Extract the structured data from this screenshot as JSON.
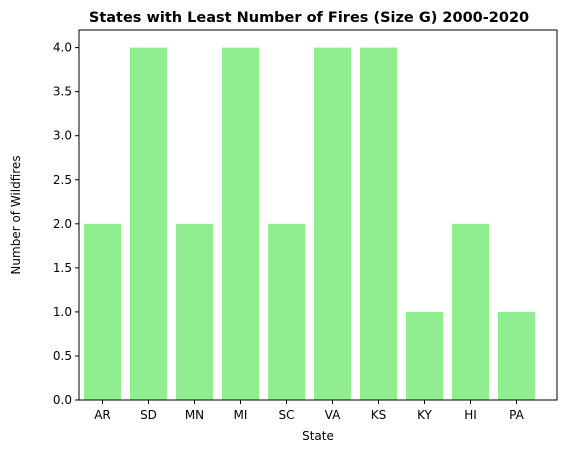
{
  "chart_data": {
    "type": "bar",
    "title": "States with Least Number of Fires (Size G) 2000-2020",
    "xlabel": "State",
    "ylabel": "Number of Wildfires",
    "categories": [
      "AR",
      "SD",
      "MN",
      "MI",
      "SC",
      "VA",
      "KS",
      "KY",
      "HI",
      "PA"
    ],
    "values": [
      2,
      4,
      2,
      4,
      2,
      4,
      4,
      1,
      2,
      1
    ],
    "ylim": [
      0,
      4.2
    ],
    "yticks": [
      "0.0",
      "0.5",
      "1.0",
      "1.5",
      "2.0",
      "2.5",
      "3.0",
      "3.5",
      "4.0"
    ],
    "bar_color": "#90ee90",
    "grid": false,
    "legend": "none"
  }
}
